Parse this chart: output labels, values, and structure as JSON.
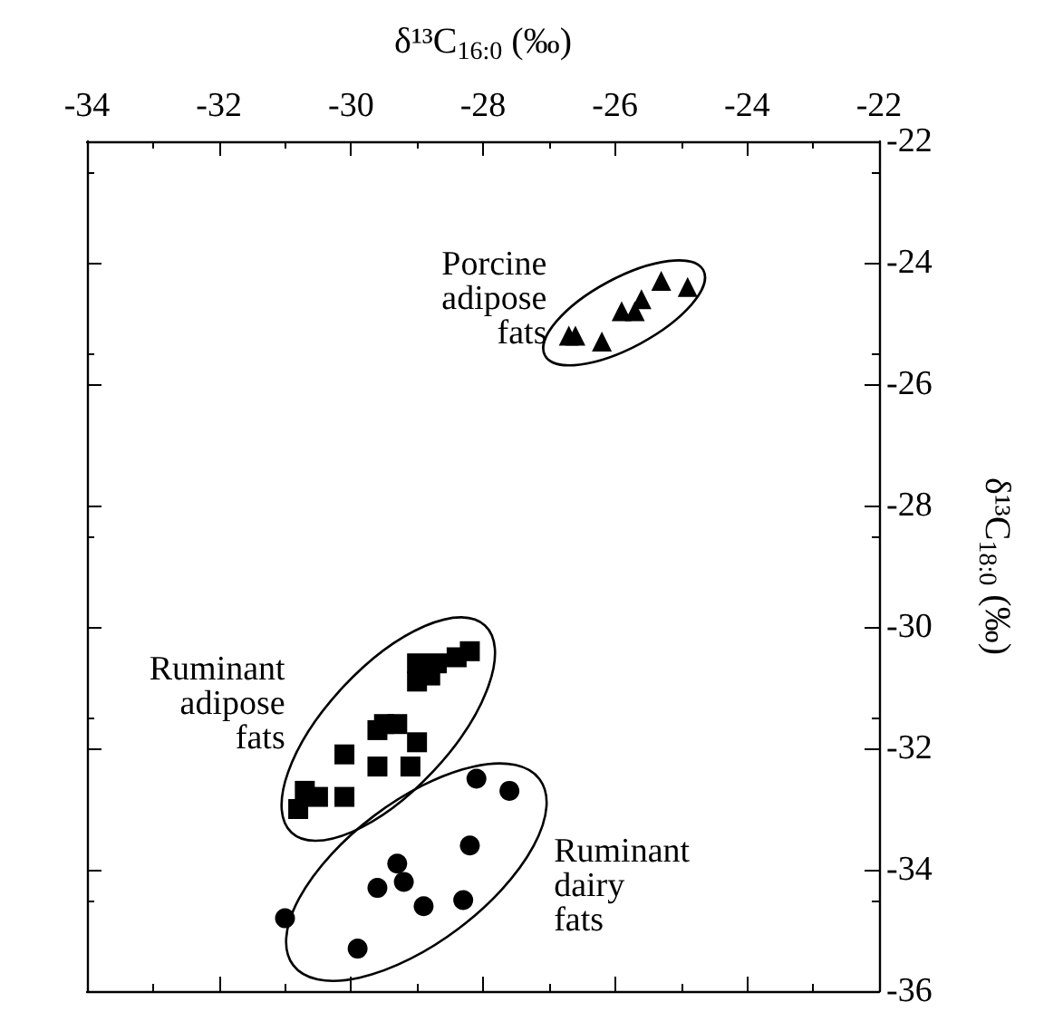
{
  "chart_data": {
    "type": "scatter",
    "xlabel": "δ¹³C$_{16:0}$ (‰)",
    "ylabel": "δ¹³C$_{18:0}$ (‰)",
    "xlim": [
      -34,
      -22
    ],
    "xticks": [
      -34,
      -32,
      -30,
      -28,
      -26,
      -24,
      -22
    ],
    "ylim": [
      -36,
      -22
    ],
    "yticks": [
      -36,
      -34,
      -32,
      -30,
      -28,
      -26,
      -24,
      -22
    ],
    "grid": false,
    "series": [
      {
        "color": "#000000",
        "marker": "triangle",
        "x": [
          -26.7,
          -26.6,
          -26.2,
          -25.9,
          -25.7,
          -25.6,
          -25.3,
          -24.9
        ],
        "values": [
          -25.2,
          -25.2,
          -25.3,
          -24.8,
          -24.8,
          -24.6,
          -24.3,
          -24.4
        ]
      },
      {
        "color": "#000000",
        "marker": "square",
        "x": [
          -30.8,
          -30.7,
          -30.5,
          -30.1,
          -30.1,
          -29.6,
          -29.1,
          -29.0,
          -29.6,
          -29.5,
          -29.3,
          -29.0,
          -28.7,
          -28.8,
          -28.4,
          -28.2,
          -29.0
        ],
        "values": [
          -33.0,
          -32.7,
          -32.8,
          -32.8,
          -32.1,
          -32.3,
          -32.3,
          -31.9,
          -31.7,
          -31.6,
          -31.6,
          -30.9,
          -30.6,
          -30.8,
          -30.5,
          -30.4,
          -30.6
        ]
      },
      {
        "color": "#000000",
        "marker": "circle",
        "x": [
          -31.0,
          -29.9,
          -29.6,
          -29.3,
          -29.2,
          -28.9,
          -28.3,
          -28.2,
          -28.1,
          -27.6
        ],
        "values": [
          -34.8,
          -35.3,
          -34.3,
          -33.9,
          -34.2,
          -34.6,
          -34.5,
          -33.6,
          -32.5,
          -32.7
        ]
      }
    ],
    "annotations": [
      "Porcine\nadipose\nfats",
      "Ruminant\nadipose\nfats",
      "Ruminant\ndairy\nfats"
    ]
  }
}
